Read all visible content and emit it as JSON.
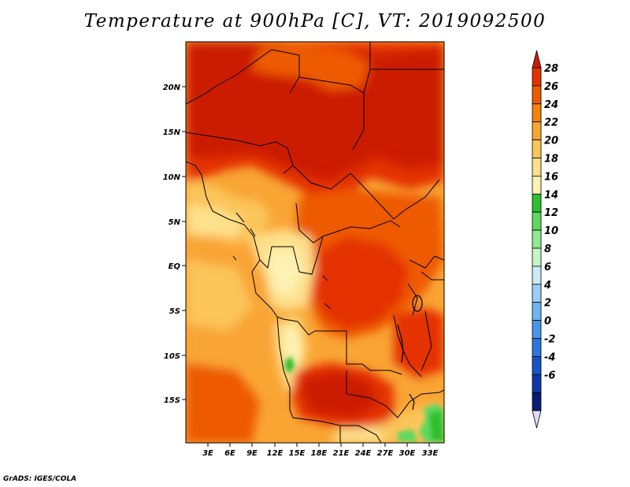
{
  "title": "Temperature at 900hPa [C], VT: 2019092500",
  "credit": "GrADS: IGES/COLA",
  "map": {
    "lon_labels": [
      "3E",
      "6E",
      "9E",
      "12E",
      "15E",
      "18E",
      "21E",
      "24E",
      "27E",
      "30E",
      "33E"
    ],
    "lat_labels": [
      "20N",
      "15N",
      "10N",
      "5N",
      "EQ",
      "5S",
      "10S",
      "15S"
    ],
    "lon_range": [
      0,
      35
    ],
    "lat_range": [
      -20,
      24.5
    ]
  },
  "colorbar": {
    "labels": [
      "28",
      "26",
      "24",
      "22",
      "20",
      "18",
      "16",
      "14",
      "12",
      "10",
      "8",
      "6",
      "4",
      "2",
      "0",
      "-2",
      "-4",
      "-6"
    ],
    "colors": [
      "#cc1c00",
      "#e43200",
      "#ee5a00",
      "#f5840a",
      "#f9a534",
      "#fbc55a",
      "#fde08c",
      "#fdf2b4",
      "#2ebf2e",
      "#5ed85e",
      "#90ea90",
      "#c4f6c4",
      "#cce8fa",
      "#9ccff7",
      "#6fb3f2",
      "#4796ea",
      "#2b77dd",
      "#1655c8",
      "#0f38aa",
      "#0a1a78",
      "#dcdcf4"
    ]
  }
}
